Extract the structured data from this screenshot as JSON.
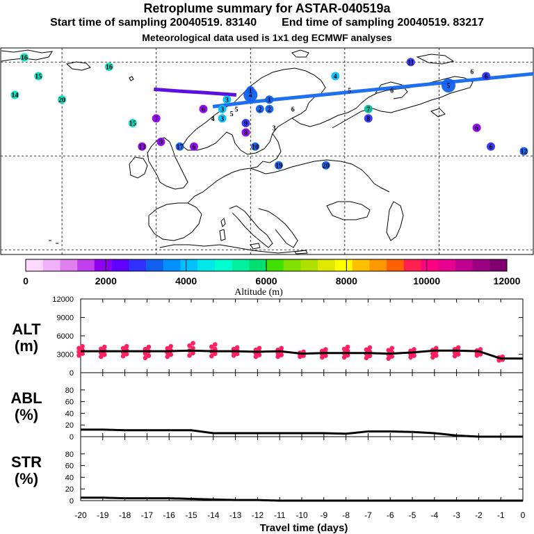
{
  "header": {
    "title": "Retroplume summary for ASTAR-040519a",
    "start_sampling": "Start time of sampling 20040519. 83140",
    "end_sampling": "End time of sampling 20040519. 83217",
    "met_data": "Meteorological data used is 1x1 deg ECMWF analyses"
  },
  "colorbar": {
    "title": "Altitude (m)",
    "tick_labels": [
      "0",
      "2000",
      "4000",
      "6000",
      "8000",
      "10000",
      "12000"
    ],
    "colors": [
      "#ffd8ff",
      "#f0b0f8",
      "#e080f0",
      "#c040f0",
      "#9000f0",
      "#6000ff",
      "#3030ff",
      "#1060f0",
      "#0090ff",
      "#00c0ff",
      "#00e8e8",
      "#00ffd0",
      "#00f0a0",
      "#00e070",
      "#40e000",
      "#80e000",
      "#b0e000",
      "#e0e800",
      "#ffff00",
      "#ffc000",
      "#ff9800",
      "#ff6000",
      "#ff2050",
      "#ff0080",
      "#e80090",
      "#c00090",
      "#9a0080",
      "#800070"
    ]
  },
  "map_labels": [
    {
      "text": "16",
      "lon": -28,
      "lat": 71,
      "color": "#00e0c0"
    },
    {
      "text": "16",
      "lon": -10,
      "lat": 69,
      "color": "#00e0c0"
    },
    {
      "text": "15",
      "lon": -25,
      "lat": 67,
      "color": "#00e0c0"
    },
    {
      "text": "14",
      "lon": -30,
      "lat": 63,
      "color": "#00e0c0"
    },
    {
      "text": "20",
      "lon": -20,
      "lat": 62,
      "color": "#00e0c0"
    },
    {
      "text": "15",
      "lon": -5,
      "lat": 57,
      "color": "#00e0c0"
    },
    {
      "text": "3",
      "lon": 15,
      "lat": 62,
      "color": "#00c0ff"
    },
    {
      "text": "3",
      "lon": 14,
      "lat": 60,
      "color": "#00c0ff"
    },
    {
      "text": "3",
      "lon": 14,
      "lat": 58,
      "color": "#00c0ff"
    },
    {
      "text": "5",
      "lon": 16,
      "lat": 59,
      "color": "#000000"
    },
    {
      "text": "5",
      "lon": 17,
      "lat": 60,
      "color": "#000000"
    },
    {
      "text": "4",
      "lon": 12,
      "lat": 58,
      "color": "#000000"
    },
    {
      "text": "4",
      "lon": 20,
      "lat": 63,
      "color": "#1060f0"
    },
    {
      "text": "1",
      "lon": 20,
      "lat": 64,
      "color": "#1060f0"
    },
    {
      "text": "2",
      "lon": 22,
      "lat": 60,
      "color": "#1060f0"
    },
    {
      "text": "2",
      "lon": 24,
      "lat": 60,
      "color": "#1060f0"
    },
    {
      "text": "1",
      "lon": 24,
      "lat": 62,
      "color": "#1060f0"
    },
    {
      "text": "6",
      "lon": 29,
      "lat": 60,
      "color": "#000000"
    },
    {
      "text": "6",
      "lon": 10,
      "lat": 60,
      "color": "#9000f0"
    },
    {
      "text": "7",
      "lon": 0,
      "lat": 58,
      "color": "#9000f0"
    },
    {
      "text": "4",
      "lon": 38,
      "lat": 67,
      "color": "#00c0ff"
    },
    {
      "text": "5",
      "lon": 41,
      "lat": 64,
      "color": "#000000"
    },
    {
      "text": "6",
      "lon": 50,
      "lat": 64,
      "color": "#000000"
    },
    {
      "text": "5",
      "lon": 62,
      "lat": 65,
      "color": "#1060f0"
    },
    {
      "text": "6",
      "lon": 67,
      "lat": 68,
      "color": "#000000"
    },
    {
      "text": "6",
      "lon": 70,
      "lat": 67,
      "color": "#3030ff"
    },
    {
      "text": "11",
      "lon": 54,
      "lat": 70,
      "color": "#3030ff"
    },
    {
      "text": "7",
      "lon": 45,
      "lat": 60,
      "color": "#00c0a0"
    },
    {
      "text": "8",
      "lon": 45,
      "lat": 58,
      "color": "#3030ff"
    },
    {
      "text": "9",
      "lon": 19,
      "lat": 57,
      "color": "#3030ff"
    },
    {
      "text": "8",
      "lon": 19,
      "lat": 55,
      "color": "#9000f0"
    },
    {
      "text": "3",
      "lon": 25,
      "lat": 56,
      "color": "#000000"
    },
    {
      "text": "10",
      "lon": 21,
      "lat": 52,
      "color": "#1060f0"
    },
    {
      "text": "19",
      "lon": 26,
      "lat": 48,
      "color": "#1060f0"
    },
    {
      "text": "20",
      "lon": 36,
      "lat": 48,
      "color": "#1060f0"
    },
    {
      "text": "9",
      "lon": 1,
      "lat": 53,
      "color": "#9000f0"
    },
    {
      "text": "17",
      "lon": 5,
      "lat": 52,
      "color": "#1060f0"
    },
    {
      "text": "6",
      "lon": 8,
      "lat": 52,
      "color": "#9000f0"
    },
    {
      "text": "13",
      "lon": -3,
      "lat": 52,
      "color": "#9000f0"
    },
    {
      "text": "6",
      "lon": 68,
      "lat": 56,
      "color": "#9000f0"
    },
    {
      "text": "6",
      "lon": 71,
      "lat": 52,
      "color": "#3030ff"
    },
    {
      "text": "12",
      "lon": 78,
      "lat": 51,
      "color": "#1060f0"
    }
  ],
  "chart_data": [
    {
      "type": "line",
      "title": "ALT (m)",
      "ylabel": "ALT (m)",
      "xlabel": "Travel time (days)",
      "ylim": [
        0,
        12000
      ],
      "yticks": [
        "0",
        "3000",
        "6000",
        "9000",
        "12000"
      ],
      "x": [
        -20,
        -19,
        -18,
        -17,
        -16,
        -15,
        -14,
        -13,
        -12,
        -11,
        -10,
        -9,
        -8,
        -7,
        -6,
        -5,
        -4,
        -3,
        -2,
        -1,
        0
      ],
      "values": [
        3500,
        3500,
        3500,
        3500,
        3500,
        3600,
        3500,
        3500,
        3400,
        3500,
        3100,
        3200,
        3200,
        3200,
        3100,
        3300,
        3600,
        3600,
        3500,
        2300,
        2300
      ],
      "scatter_x": [
        -20,
        -19,
        -18,
        -17,
        -16,
        -15,
        -14,
        -13,
        -12,
        -11,
        -10,
        -9,
        -8,
        -7,
        -6,
        -5,
        -4,
        -3,
        -2,
        -1
      ],
      "scatter_low": [
        2800,
        2600,
        2700,
        2400,
        2600,
        2800,
        2700,
        2800,
        2600,
        2600,
        2600,
        2500,
        2500,
        2400,
        2300,
        2500,
        2500,
        2700,
        2800,
        2000
      ],
      "scatter_high": [
        4300,
        4200,
        4300,
        4200,
        4300,
        4800,
        4600,
        4100,
        4000,
        4000,
        3400,
        3800,
        4200,
        4100,
        4000,
        3800,
        4000,
        4100,
        3800,
        2600
      ],
      "scatter_color": "#ff2060",
      "line_color": "#000000"
    },
    {
      "type": "line",
      "title": "ABL (%)",
      "ylabel": "ABL (%)",
      "xlabel": "Travel time (days)",
      "ylim": [
        0,
        100
      ],
      "yticks": [
        "0",
        "20",
        "40",
        "60",
        "80"
      ],
      "x": [
        -20,
        -19,
        -18,
        -17,
        -16,
        -15,
        -14,
        -13,
        -12,
        -11,
        -10,
        -9,
        -8,
        -7,
        -6,
        -5,
        -4,
        -3,
        -2,
        -1,
        0
      ],
      "values": [
        12,
        12,
        11,
        11,
        11,
        11,
        6,
        6,
        6,
        6,
        6,
        6,
        5,
        9,
        9,
        8,
        6,
        2,
        0,
        0,
        0
      ],
      "line_color": "#000000"
    },
    {
      "type": "line",
      "title": "STR (%)",
      "ylabel": "STR (%)",
      "xlabel": "Travel time (days)",
      "ylim": [
        0,
        100
      ],
      "yticks": [
        "0",
        "20",
        "40",
        "60",
        "80"
      ],
      "x": [
        -20,
        -19,
        -18,
        -17,
        -16,
        -15,
        -14,
        -13,
        -12,
        -11,
        -10,
        -9,
        -8,
        -7,
        -6,
        -5,
        -4,
        -3,
        -2,
        -1,
        0
      ],
      "values": [
        5,
        5,
        4,
        4,
        4,
        3,
        2,
        1,
        1,
        0,
        0,
        0,
        0,
        0,
        0,
        0,
        0,
        0,
        0,
        0,
        0
      ],
      "line_color": "#000000"
    }
  ],
  "x_axis": {
    "label": "Travel time (days)",
    "tick_labels": [
      "-20",
      "-19",
      "-18",
      "-17",
      "-16",
      "-15",
      "-14",
      "-13",
      "-12",
      "-11",
      "-10",
      "-9",
      "-8",
      "-7",
      "-6",
      "-5",
      "-4",
      "-3",
      "-2",
      "-1",
      "0"
    ]
  }
}
